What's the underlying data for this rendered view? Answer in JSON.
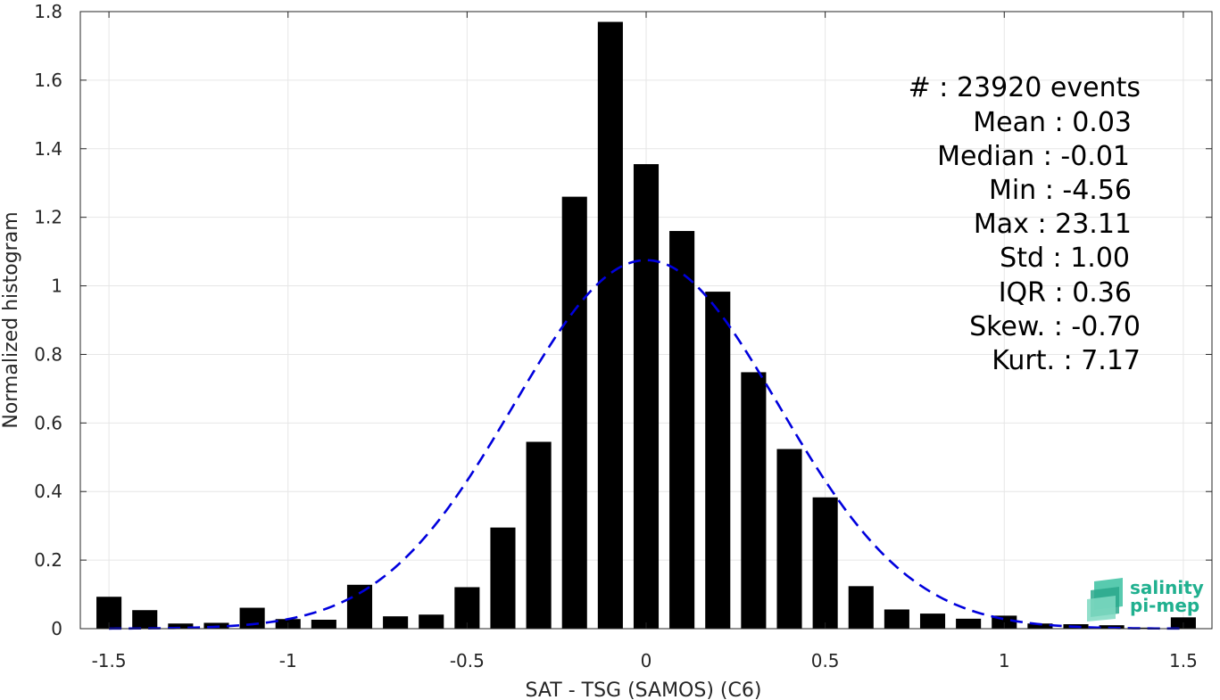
{
  "chart_data": {
    "type": "bar",
    "xlabel": "SAT - TSG (SAMOS) (C6)",
    "ylabel": "Normalized histogram",
    "xlim": [
      -1.58,
      1.58
    ],
    "ylim": [
      0,
      1.8
    ],
    "grid": true,
    "x_ticks": [
      -1.5,
      -1,
      -0.5,
      0,
      0.5,
      1,
      1.5
    ],
    "x_tick_labels": [
      "-1.5",
      "-1",
      "-0.5",
      "0",
      "0.5",
      "1",
      "1.5"
    ],
    "y_ticks": [
      0,
      0.2,
      0.4,
      0.6,
      0.8,
      1,
      1.2,
      1.4,
      1.6,
      1.8
    ],
    "y_tick_labels": [
      "0",
      "0.2",
      "0.4",
      "0.6",
      "0.8",
      "1",
      "1.2",
      "1.4",
      "1.6",
      "1.8"
    ],
    "bar_width": 0.07,
    "bar_color": "#000000",
    "bins": [
      {
        "x": -1.5,
        "y": 0.093
      },
      {
        "x": -1.4,
        "y": 0.054
      },
      {
        "x": -1.3,
        "y": 0.015
      },
      {
        "x": -1.2,
        "y": 0.017
      },
      {
        "x": -1.1,
        "y": 0.061
      },
      {
        "x": -1.0,
        "y": 0.028
      },
      {
        "x": -0.9,
        "y": 0.026
      },
      {
        "x": -0.8,
        "y": 0.128
      },
      {
        "x": -0.7,
        "y": 0.036
      },
      {
        "x": -0.6,
        "y": 0.041
      },
      {
        "x": -0.5,
        "y": 0.121
      },
      {
        "x": -0.4,
        "y": 0.295
      },
      {
        "x": -0.3,
        "y": 0.545
      },
      {
        "x": -0.2,
        "y": 1.26
      },
      {
        "x": -0.1,
        "y": 1.77
      },
      {
        "x": 0.0,
        "y": 1.355
      },
      {
        "x": 0.1,
        "y": 1.16
      },
      {
        "x": 0.2,
        "y": 0.983
      },
      {
        "x": 0.3,
        "y": 0.748
      },
      {
        "x": 0.4,
        "y": 0.524
      },
      {
        "x": 0.5,
        "y": 0.383
      },
      {
        "x": 0.6,
        "y": 0.124
      },
      {
        "x": 0.7,
        "y": 0.056
      },
      {
        "x": 0.8,
        "y": 0.044
      },
      {
        "x": 0.9,
        "y": 0.029
      },
      {
        "x": 1.0,
        "y": 0.038
      },
      {
        "x": 1.1,
        "y": 0.015
      },
      {
        "x": 1.2,
        "y": 0.013
      },
      {
        "x": 1.3,
        "y": 0.01
      },
      {
        "x": 1.4,
        "y": 0.003
      },
      {
        "x": 1.5,
        "y": 0.033
      }
    ],
    "fit_curve": {
      "style": "dashed",
      "color": "#0000dd",
      "mean": 0.0,
      "std": 0.37,
      "amplitude": 1.075,
      "x_range": [
        -1.5,
        1.5
      ]
    },
    "stats_lines": [
      "#  : 23920 events",
      "Mean : 0.03",
      "Median : -0.01",
      "Min : -4.56",
      "Max : 23.11",
      "Std : 1.00",
      "IQR : 0.36",
      "Skew. : -0.70",
      "Kurt. : 7.17"
    ]
  },
  "logo": {
    "line1": "salinity",
    "line2": "pi-mep",
    "color": "#20b08f"
  }
}
